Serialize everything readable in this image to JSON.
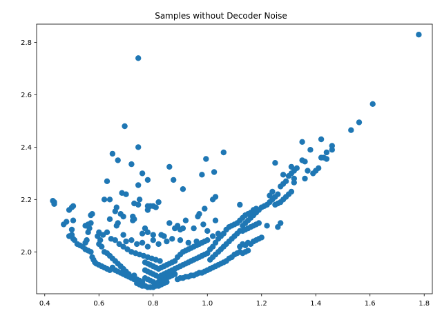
{
  "chart_data": {
    "type": "scatter",
    "title": "Samples without Decoder Noise",
    "xlabel": "",
    "ylabel": "",
    "xlim": [
      0.37,
      1.83
    ],
    "ylim": [
      1.84,
      2.87
    ],
    "xticks": [
      0.4,
      0.6,
      0.8,
      1.0,
      1.2,
      1.4,
      1.6,
      1.8
    ],
    "yticks": [
      2.0,
      2.2,
      2.4,
      2.6,
      2.8
    ],
    "xtick_labels": [
      "0.4",
      "0.6",
      "0.8",
      "1.0",
      "1.2",
      "1.4",
      "1.6",
      "1.8"
    ],
    "ytick_labels": [
      "2.0",
      "2.2",
      "2.4",
      "2.6",
      "2.8"
    ],
    "grid": false,
    "marker_color": "#1f77b4",
    "points": [
      [
        0.43,
        2.195
      ],
      [
        0.435,
        2.19
      ],
      [
        0.435,
        2.183
      ],
      [
        0.47,
        2.105
      ],
      [
        0.48,
        2.115
      ],
      [
        0.49,
        2.16
      ],
      [
        0.5,
        2.17
      ],
      [
        0.505,
        2.175
      ],
      [
        0.505,
        2.12
      ],
      [
        0.49,
        2.06
      ],
      [
        0.5,
        2.085
      ],
      [
        0.5,
        2.065
      ],
      [
        0.505,
        2.05
      ],
      [
        0.51,
        2.045
      ],
      [
        0.52,
        2.03
      ],
      [
        0.53,
        2.025
      ],
      [
        0.54,
        2.02
      ],
      [
        0.55,
        2.035
      ],
      [
        0.555,
        2.045
      ],
      [
        0.55,
        2.1
      ],
      [
        0.56,
        2.105
      ],
      [
        0.56,
        2.075
      ],
      [
        0.565,
        2.09
      ],
      [
        0.57,
        2.11
      ],
      [
        0.57,
        2.14
      ],
      [
        0.575,
        2.145
      ],
      [
        0.55,
        2.01
      ],
      [
        0.56,
        2.005
      ],
      [
        0.57,
        2.0
      ],
      [
        0.575,
        1.98
      ],
      [
        0.58,
        1.97
      ],
      [
        0.585,
        1.96
      ],
      [
        0.59,
        1.955
      ],
      [
        0.6,
        1.95
      ],
      [
        0.61,
        1.945
      ],
      [
        0.62,
        1.94
      ],
      [
        0.63,
        1.935
      ],
      [
        0.64,
        1.93
      ],
      [
        0.595,
        2.06
      ],
      [
        0.6,
        2.075
      ],
      [
        0.6,
        2.03
      ],
      [
        0.61,
        2.02
      ],
      [
        0.605,
        2.045
      ],
      [
        0.615,
        2.065
      ],
      [
        0.62,
        2.2
      ],
      [
        0.63,
        2.27
      ],
      [
        0.64,
        2.2
      ],
      [
        0.64,
        2.125
      ],
      [
        0.63,
        2.075
      ],
      [
        0.645,
        2.05
      ],
      [
        0.62,
        2.0
      ],
      [
        0.63,
        1.995
      ],
      [
        0.64,
        1.985
      ],
      [
        0.65,
        1.975
      ],
      [
        0.66,
        1.965
      ],
      [
        0.67,
        1.955
      ],
      [
        0.68,
        1.945
      ],
      [
        0.69,
        1.935
      ],
      [
        0.7,
        1.925
      ],
      [
        0.71,
        1.915
      ],
      [
        0.72,
        1.905
      ],
      [
        0.73,
        1.895
      ],
      [
        0.65,
        2.375
      ],
      [
        0.67,
        2.35
      ],
      [
        0.66,
        2.155
      ],
      [
        0.665,
        2.17
      ],
      [
        0.67,
        2.11
      ],
      [
        0.665,
        2.1
      ],
      [
        0.68,
        2.145
      ],
      [
        0.69,
        2.135
      ],
      [
        0.685,
        2.225
      ],
      [
        0.7,
        2.22
      ],
      [
        0.69,
        2.065
      ],
      [
        0.695,
        2.48
      ],
      [
        0.72,
        2.335
      ],
      [
        0.73,
        2.185
      ],
      [
        0.725,
        2.135
      ],
      [
        0.725,
        2.12
      ],
      [
        0.73,
        2.125
      ],
      [
        0.745,
        2.74
      ],
      [
        0.745,
        2.4
      ],
      [
        0.745,
        2.255
      ],
      [
        0.745,
        2.18
      ],
      [
        0.75,
        2.2
      ],
      [
        0.76,
        2.3
      ],
      [
        0.78,
        2.275
      ],
      [
        0.78,
        2.175
      ],
      [
        0.79,
        2.175
      ],
      [
        0.78,
        2.16
      ],
      [
        0.8,
        2.175
      ],
      [
        0.81,
        2.17
      ],
      [
        0.82,
        2.19
      ],
      [
        0.77,
        2.09
      ],
      [
        0.78,
        2.075
      ],
      [
        0.76,
        2.07
      ],
      [
        0.8,
        2.065
      ],
      [
        0.83,
        2.065
      ],
      [
        0.84,
        2.06
      ],
      [
        0.86,
        2.325
      ],
      [
        0.875,
        2.275
      ],
      [
        0.91,
        2.24
      ],
      [
        0.86,
        2.11
      ],
      [
        0.88,
        2.09
      ],
      [
        0.89,
        2.1
      ],
      [
        0.9,
        2.085
      ],
      [
        0.91,
        2.09
      ],
      [
        0.92,
        2.12
      ],
      [
        0.95,
        2.09
      ],
      [
        0.965,
        2.135
      ],
      [
        0.97,
        2.145
      ],
      [
        0.98,
        2.295
      ],
      [
        0.995,
        2.355
      ],
      [
        1.025,
        2.305
      ],
      [
        1.06,
        2.38
      ],
      [
        0.99,
        2.165
      ],
      [
        1.02,
        2.2
      ],
      [
        1.03,
        2.21
      ],
      [
        1.03,
        2.12
      ],
      [
        0.985,
        2.105
      ],
      [
        1.0,
        2.08
      ],
      [
        1.02,
        2.06
      ],
      [
        1.04,
        2.07
      ],
      [
        0.7,
        2.04
      ],
      [
        0.72,
        2.045
      ],
      [
        0.74,
        2.03
      ],
      [
        0.76,
        2.035
      ],
      [
        0.78,
        2.02
      ],
      [
        0.8,
        2.045
      ],
      [
        0.82,
        2.03
      ],
      [
        0.85,
        2.04
      ],
      [
        0.87,
        2.05
      ],
      [
        0.9,
        2.045
      ],
      [
        0.93,
        2.035
      ],
      [
        0.96,
        2.04
      ],
      [
        0.66,
        2.045
      ],
      [
        0.675,
        2.03
      ],
      [
        0.69,
        2.02
      ],
      [
        0.705,
        2.01
      ],
      [
        0.72,
        2.0
      ],
      [
        0.735,
        1.995
      ],
      [
        0.75,
        1.99
      ],
      [
        0.765,
        1.985
      ],
      [
        0.78,
        1.98
      ],
      [
        0.795,
        1.975
      ],
      [
        0.81,
        1.97
      ],
      [
        0.825,
        1.965
      ],
      [
        0.65,
        1.94
      ],
      [
        0.66,
        1.93
      ],
      [
        0.67,
        1.925
      ],
      [
        0.68,
        1.92
      ],
      [
        0.69,
        1.915
      ],
      [
        0.7,
        1.91
      ],
      [
        0.71,
        1.905
      ],
      [
        0.72,
        1.9
      ],
      [
        0.73,
        1.91
      ],
      [
        0.74,
        1.895
      ],
      [
        0.75,
        1.89
      ],
      [
        0.76,
        1.885
      ],
      [
        0.74,
        1.88
      ],
      [
        0.75,
        1.875
      ],
      [
        0.76,
        1.87
      ],
      [
        0.77,
        1.87
      ],
      [
        0.78,
        1.865
      ],
      [
        0.79,
        1.865
      ],
      [
        0.8,
        1.865
      ],
      [
        0.81,
        1.87
      ],
      [
        0.82,
        1.87
      ],
      [
        0.83,
        1.875
      ],
      [
        0.84,
        1.88
      ],
      [
        0.85,
        1.885
      ],
      [
        0.77,
        1.9
      ],
      [
        0.78,
        1.895
      ],
      [
        0.79,
        1.89
      ],
      [
        0.8,
        1.885
      ],
      [
        0.81,
        1.88
      ],
      [
        0.82,
        1.885
      ],
      [
        0.83,
        1.89
      ],
      [
        0.84,
        1.895
      ],
      [
        0.85,
        1.9
      ],
      [
        0.86,
        1.905
      ],
      [
        0.87,
        1.91
      ],
      [
        0.88,
        1.915
      ],
      [
        0.77,
        1.93
      ],
      [
        0.78,
        1.925
      ],
      [
        0.79,
        1.92
      ],
      [
        0.8,
        1.915
      ],
      [
        0.81,
        1.91
      ],
      [
        0.82,
        1.905
      ],
      [
        0.83,
        1.91
      ],
      [
        0.84,
        1.915
      ],
      [
        0.85,
        1.92
      ],
      [
        0.86,
        1.925
      ],
      [
        0.87,
        1.93
      ],
      [
        0.88,
        1.935
      ],
      [
        0.77,
        1.96
      ],
      [
        0.78,
        1.955
      ],
      [
        0.79,
        1.95
      ],
      [
        0.8,
        1.945
      ],
      [
        0.81,
        1.94
      ],
      [
        0.82,
        1.935
      ],
      [
        0.83,
        1.94
      ],
      [
        0.84,
        1.945
      ],
      [
        0.85,
        1.95
      ],
      [
        0.86,
        1.955
      ],
      [
        0.87,
        1.96
      ],
      [
        0.88,
        1.965
      ],
      [
        0.89,
        1.895
      ],
      [
        0.9,
        1.9
      ],
      [
        0.91,
        1.9
      ],
      [
        0.92,
        1.905
      ],
      [
        0.93,
        1.905
      ],
      [
        0.94,
        1.91
      ],
      [
        0.95,
        1.91
      ],
      [
        0.96,
        1.915
      ],
      [
        0.97,
        1.92
      ],
      [
        0.98,
        1.92
      ],
      [
        0.99,
        1.925
      ],
      [
        1.0,
        1.93
      ],
      [
        0.89,
        1.94
      ],
      [
        0.9,
        1.945
      ],
      [
        0.91,
        1.95
      ],
      [
        0.92,
        1.955
      ],
      [
        0.93,
        1.96
      ],
      [
        0.94,
        1.965
      ],
      [
        0.95,
        1.97
      ],
      [
        0.96,
        1.975
      ],
      [
        0.97,
        1.98
      ],
      [
        0.98,
        1.985
      ],
      [
        0.99,
        1.99
      ],
      [
        1.0,
        1.995
      ],
      [
        0.89,
        1.98
      ],
      [
        0.9,
        1.99
      ],
      [
        0.91,
        2.0
      ],
      [
        0.92,
        2.005
      ],
      [
        0.93,
        2.01
      ],
      [
        0.94,
        2.015
      ],
      [
        0.95,
        2.02
      ],
      [
        0.96,
        2.025
      ],
      [
        0.97,
        2.03
      ],
      [
        0.98,
        2.035
      ],
      [
        0.99,
        2.04
      ],
      [
        1.0,
        2.045
      ],
      [
        1.01,
        1.935
      ],
      [
        1.02,
        1.94
      ],
      [
        1.03,
        1.945
      ],
      [
        1.04,
        1.95
      ],
      [
        1.05,
        1.955
      ],
      [
        1.06,
        1.96
      ],
      [
        1.07,
        1.965
      ],
      [
        1.08,
        1.975
      ],
      [
        1.09,
        1.98
      ],
      [
        1.1,
        1.99
      ],
      [
        1.11,
        1.995
      ],
      [
        1.12,
        2.0
      ],
      [
        1.01,
        1.97
      ],
      [
        1.02,
        1.98
      ],
      [
        1.03,
        1.99
      ],
      [
        1.04,
        2.0
      ],
      [
        1.05,
        2.01
      ],
      [
        1.06,
        2.02
      ],
      [
        1.07,
        2.03
      ],
      [
        1.08,
        2.04
      ],
      [
        1.09,
        2.05
      ],
      [
        1.1,
        2.06
      ],
      [
        1.11,
        2.07
      ],
      [
        1.12,
        2.08
      ],
      [
        1.01,
        2.01
      ],
      [
        1.02,
        2.02
      ],
      [
        1.03,
        2.035
      ],
      [
        1.04,
        2.05
      ],
      [
        1.05,
        2.06
      ],
      [
        1.06,
        2.07
      ],
      [
        1.07,
        2.085
      ],
      [
        1.08,
        2.095
      ],
      [
        1.09,
        2.1
      ],
      [
        1.1,
        2.105
      ],
      [
        1.11,
        2.11
      ],
      [
        1.12,
        2.12
      ],
      [
        1.13,
        2.1
      ],
      [
        1.14,
        2.11
      ],
      [
        1.15,
        2.12
      ],
      [
        1.16,
        2.13
      ],
      [
        1.17,
        2.14
      ],
      [
        1.18,
        2.15
      ],
      [
        1.19,
        2.16
      ],
      [
        1.2,
        2.17
      ],
      [
        1.21,
        2.175
      ],
      [
        1.22,
        2.18
      ],
      [
        1.13,
        2.13
      ],
      [
        1.14,
        2.14
      ],
      [
        1.15,
        2.145
      ],
      [
        1.16,
        2.15
      ],
      [
        1.17,
        2.16
      ],
      [
        1.18,
        2.165
      ],
      [
        1.12,
        2.18
      ],
      [
        1.13,
        2.08
      ],
      [
        1.14,
        2.085
      ],
      [
        1.15,
        2.09
      ],
      [
        1.16,
        2.095
      ],
      [
        1.17,
        2.1
      ],
      [
        1.18,
        2.105
      ],
      [
        1.19,
        2.11
      ],
      [
        1.12,
        2.02
      ],
      [
        1.13,
        2.03
      ],
      [
        1.14,
        2.025
      ],
      [
        1.15,
        2.035
      ],
      [
        1.16,
        2.03
      ],
      [
        1.17,
        2.04
      ],
      [
        1.18,
        2.045
      ],
      [
        1.19,
        2.05
      ],
      [
        1.2,
        2.055
      ],
      [
        1.13,
        1.995
      ],
      [
        1.14,
        2.0
      ],
      [
        1.15,
        2.005
      ],
      [
        1.22,
        2.1
      ],
      [
        1.23,
        2.19
      ],
      [
        1.24,
        2.2
      ],
      [
        1.25,
        2.21
      ],
      [
        1.26,
        2.22
      ],
      [
        1.27,
        2.19
      ],
      [
        1.28,
        2.2
      ],
      [
        1.29,
        2.21
      ],
      [
        1.3,
        2.22
      ],
      [
        1.31,
        2.23
      ],
      [
        1.25,
        2.34
      ],
      [
        1.26,
        2.095
      ],
      [
        1.27,
        2.11
      ],
      [
        1.23,
        2.215
      ],
      [
        1.24,
        2.23
      ],
      [
        1.25,
        2.18
      ],
      [
        1.26,
        2.185
      ],
      [
        1.27,
        2.25
      ],
      [
        1.28,
        2.26
      ],
      [
        1.29,
        2.27
      ],
      [
        1.3,
        2.29
      ],
      [
        1.31,
        2.3
      ],
      [
        1.32,
        2.31
      ],
      [
        1.33,
        2.32
      ],
      [
        1.28,
        2.295
      ],
      [
        1.31,
        2.325
      ],
      [
        1.32,
        2.28
      ],
      [
        1.32,
        2.265
      ],
      [
        1.35,
        2.35
      ],
      [
        1.35,
        2.42
      ],
      [
        1.36,
        2.345
      ],
      [
        1.36,
        2.28
      ],
      [
        1.37,
        2.31
      ],
      [
        1.38,
        2.39
      ],
      [
        1.39,
        2.3
      ],
      [
        1.4,
        2.31
      ],
      [
        1.41,
        2.32
      ],
      [
        1.42,
        2.36
      ],
      [
        1.42,
        2.43
      ],
      [
        1.43,
        2.36
      ],
      [
        1.44,
        2.355
      ],
      [
        1.44,
        2.38
      ],
      [
        1.46,
        2.39
      ],
      [
        1.46,
        2.405
      ],
      [
        1.53,
        2.465
      ],
      [
        1.56,
        2.495
      ],
      [
        1.61,
        2.565
      ],
      [
        1.78,
        2.83
      ]
    ]
  }
}
